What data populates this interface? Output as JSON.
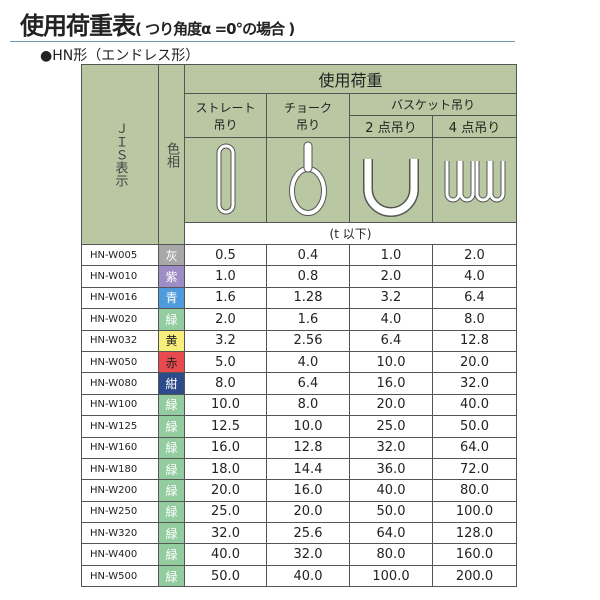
{
  "title": {
    "main": "使用荷重表",
    "note": "( つり角度α =0°の場合 )"
  },
  "subtitle": "●HN形（エンドレス形）",
  "header": {
    "jis": "ＪＩＳ表示",
    "color": "色相",
    "load": "使用荷重",
    "straight": "ストレート吊り",
    "choke": "チョーク吊り",
    "basket": "バスケット吊り",
    "two_point": "2 点吊り",
    "four_point": "4 点吊り",
    "unit": "(t 以下)"
  },
  "icons": [
    "straight-sling",
    "choke-sling",
    "basket-2point-sling",
    "basket-4point-sling"
  ],
  "rows": [
    {
      "jis": "HN-W005",
      "color": "灰",
      "hex": "#a8a8a8",
      "text": "#fff",
      "v": [
        "0.5",
        "0.4",
        "1.0",
        "2.0"
      ]
    },
    {
      "jis": "HN-W010",
      "color": "紫",
      "hex": "#9d8cc6",
      "text": "#fff",
      "v": [
        "1.0",
        "0.8",
        "2.0",
        "4.0"
      ]
    },
    {
      "jis": "HN-W016",
      "color": "青",
      "hex": "#4d9bdb",
      "text": "#fff",
      "v": [
        "1.6",
        "1.28",
        "3.2",
        "6.4"
      ]
    },
    {
      "jis": "HN-W020",
      "color": "緑",
      "hex": "#92cc9f",
      "text": "#fff",
      "v": [
        "2.0",
        "1.6",
        "4.0",
        "8.0"
      ]
    },
    {
      "jis": "HN-W032",
      "color": "黄",
      "hex": "#f8ee7c",
      "text": "#222",
      "v": [
        "3.2",
        "2.56",
        "6.4",
        "12.8"
      ]
    },
    {
      "jis": "HN-W050",
      "color": "赤",
      "hex": "#e84a4e",
      "text": "#222",
      "v": [
        "5.0",
        "4.0",
        "10.0",
        "20.0"
      ]
    },
    {
      "jis": "HN-W080",
      "color": "紺",
      "hex": "#2b4b8b",
      "text": "#fff",
      "v": [
        "8.0",
        "6.4",
        "16.0",
        "32.0"
      ]
    },
    {
      "jis": "HN-W100",
      "color": "緑",
      "hex": "#92cc9f",
      "text": "#fff",
      "v": [
        "10.0",
        "8.0",
        "20.0",
        "40.0"
      ]
    },
    {
      "jis": "HN-W125",
      "color": "緑",
      "hex": "#92cc9f",
      "text": "#fff",
      "v": [
        "12.5",
        "10.0",
        "25.0",
        "50.0"
      ]
    },
    {
      "jis": "HN-W160",
      "color": "緑",
      "hex": "#92cc9f",
      "text": "#fff",
      "v": [
        "16.0",
        "12.8",
        "32.0",
        "64.0"
      ]
    },
    {
      "jis": "HN-W180",
      "color": "緑",
      "hex": "#92cc9f",
      "text": "#fff",
      "v": [
        "18.0",
        "14.4",
        "36.0",
        "72.0"
      ]
    },
    {
      "jis": "HN-W200",
      "color": "緑",
      "hex": "#92cc9f",
      "text": "#fff",
      "v": [
        "20.0",
        "16.0",
        "40.0",
        "80.0"
      ]
    },
    {
      "jis": "HN-W250",
      "color": "緑",
      "hex": "#92cc9f",
      "text": "#fff",
      "v": [
        "25.0",
        "20.0",
        "50.0",
        "100.0"
      ]
    },
    {
      "jis": "HN-W320",
      "color": "緑",
      "hex": "#92cc9f",
      "text": "#fff",
      "v": [
        "32.0",
        "25.6",
        "64.0",
        "128.0"
      ]
    },
    {
      "jis": "HN-W400",
      "color": "緑",
      "hex": "#92cc9f",
      "text": "#fff",
      "v": [
        "40.0",
        "32.0",
        "80.0",
        "160.0"
      ]
    },
    {
      "jis": "HN-W500",
      "color": "緑",
      "hex": "#92cc9f",
      "text": "#fff",
      "v": [
        "50.0",
        "40.0",
        "100.0",
        "200.0"
      ]
    }
  ]
}
